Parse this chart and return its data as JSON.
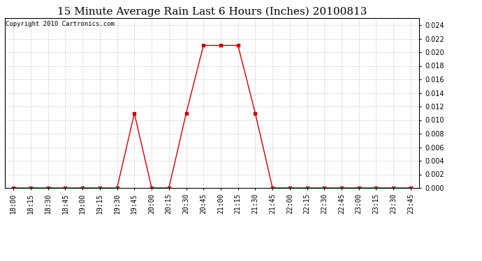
{
  "title": "15 Minute Average Rain Last 6 Hours (Inches) 20100813",
  "copyright": "Copyright 2010 Cartronics.com",
  "x_labels": [
    "18:00",
    "18:15",
    "18:30",
    "18:45",
    "19:00",
    "19:15",
    "19:30",
    "19:45",
    "20:00",
    "20:15",
    "20:30",
    "20:45",
    "21:00",
    "21:15",
    "21:30",
    "21:45",
    "22:00",
    "22:15",
    "22:30",
    "22:45",
    "23:00",
    "23:15",
    "23:30",
    "23:45"
  ],
  "y_values": [
    0.0,
    0.0,
    0.0,
    0.0,
    0.0,
    0.0,
    0.0,
    0.011,
    0.0,
    0.0,
    0.011,
    0.021,
    0.021,
    0.021,
    0.011,
    0.0,
    0.0,
    0.0,
    0.0,
    0.0,
    0.0,
    0.0,
    0.0,
    0.0
  ],
  "line_color": "#cc0000",
  "marker": "s",
  "marker_size": 2.5,
  "ylim": [
    0.0,
    0.025
  ],
  "yticks": [
    0.0,
    0.002,
    0.004,
    0.006,
    0.008,
    0.01,
    0.012,
    0.014,
    0.016,
    0.018,
    0.02,
    0.022,
    0.024
  ],
  "background_color": "#ffffff",
  "plot_bg_color": "#ffffff",
  "grid_color": "#cccccc",
  "title_fontsize": 11,
  "copyright_fontsize": 6.5,
  "tick_fontsize": 7
}
